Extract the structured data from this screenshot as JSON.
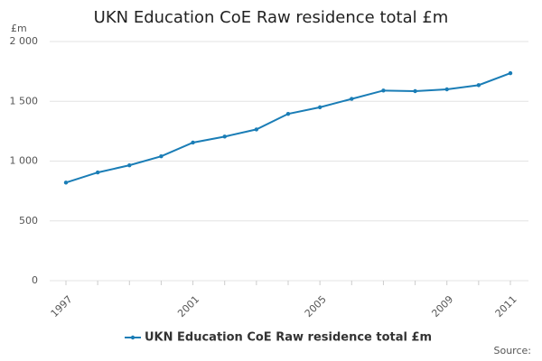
{
  "chart_data": {
    "type": "line",
    "title": "UKN Education CoE Raw residence total £m",
    "y_label": "£m",
    "source": "Source:",
    "x": [
      1997,
      1998,
      1999,
      2000,
      2001,
      2002,
      2003,
      2004,
      2005,
      2006,
      2007,
      2008,
      2009,
      2010,
      2011
    ],
    "series": [
      {
        "name": "UKN Education CoE Raw residence total £m",
        "color": "#1a7db6",
        "values": [
          820,
          905,
          965,
          1040,
          1155,
          1205,
          1265,
          1395,
          1450,
          1520,
          1590,
          1585,
          1600,
          1635,
          1735
        ]
      }
    ],
    "xlim": [
      1997,
      2011
    ],
    "xticks": [
      1997,
      2001,
      2005,
      2009,
      2011
    ],
    "ylim": [
      0,
      2000
    ],
    "yticks": [
      0,
      500,
      {
        "value": 1000,
        "label": "1 000"
      },
      {
        "value": 1500,
        "label": "1 500"
      },
      {
        "value": 2000,
        "label": "2 000"
      }
    ],
    "grid": true,
    "legend": "bottom"
  }
}
